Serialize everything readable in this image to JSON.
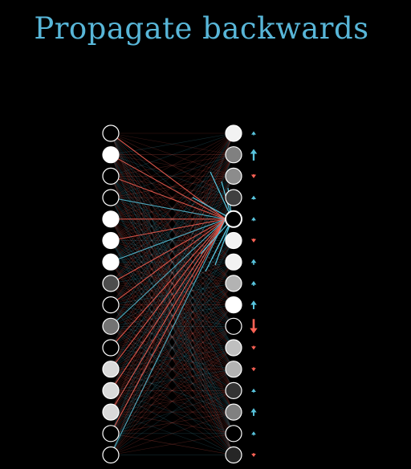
{
  "title": "Propagate backwards",
  "colors": {
    "title": "#58b6d8",
    "increase": "#58c4dd",
    "decrease": "#fc6255",
    "node_stroke": "#ffffff",
    "background": "#000000"
  },
  "network": {
    "focus_output_index": 4,
    "left_layer_activations": [
      0.0,
      1.0,
      0.0,
      0.0,
      1.0,
      1.0,
      1.0,
      0.3,
      0.0,
      0.45,
      0.0,
      0.85,
      0.85,
      0.85,
      0.0,
      0.0
    ],
    "right_layer_activations": [
      0.95,
      0.5,
      0.55,
      0.25,
      0.0,
      0.95,
      0.95,
      0.7,
      1.0,
      0.0,
      0.75,
      0.7,
      0.2,
      0.5,
      0.0,
      0.15
    ],
    "focus_connection_signs": [
      "neg",
      "neg",
      "neg",
      "pos",
      "neg",
      "neg",
      "pos",
      "neg",
      "neg",
      "pos",
      "neg",
      "neg",
      "neg",
      "neg",
      "neg",
      "pos"
    ],
    "output_nudges": [
      {
        "direction": "up",
        "magnitude": 0.15
      },
      {
        "direction": "up",
        "magnitude": 0.6
      },
      {
        "direction": "down",
        "magnitude": 0.2
      },
      {
        "direction": "up",
        "magnitude": 0.2
      },
      {
        "direction": "up",
        "magnitude": 0.15
      },
      {
        "direction": "down",
        "magnitude": 0.2
      },
      {
        "direction": "up",
        "magnitude": 0.3
      },
      {
        "direction": "up",
        "magnitude": 0.25
      },
      {
        "direction": "up",
        "magnitude": 0.45
      },
      {
        "direction": "down",
        "magnitude": 0.75
      },
      {
        "direction": "down",
        "magnitude": 0.15
      },
      {
        "direction": "down",
        "magnitude": 0.12
      },
      {
        "direction": "up",
        "magnitude": 0.15
      },
      {
        "direction": "up",
        "magnitude": 0.4
      },
      {
        "direction": "up",
        "magnitude": 0.12
      },
      {
        "direction": "down",
        "magnitude": 0.12
      }
    ]
  }
}
